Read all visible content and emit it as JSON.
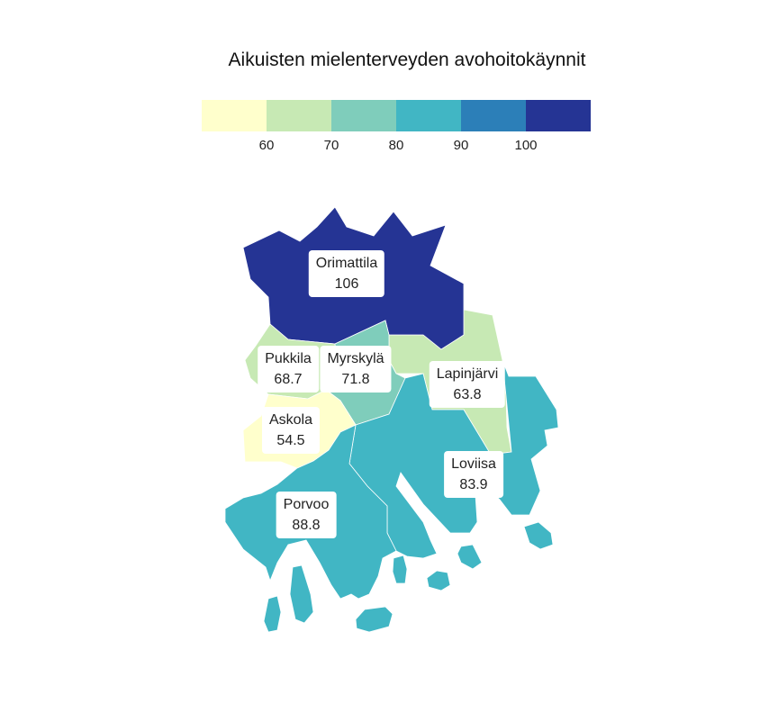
{
  "title": "Aikuisten mielenterveyden avohoitokäynnit",
  "legend": {
    "colors": [
      "#ffffcc",
      "#c7e9b4",
      "#7fcdbb",
      "#41b6c4",
      "#2c7fb8",
      "#253494"
    ],
    "ticks": [
      "60",
      "70",
      "80",
      "90",
      "100"
    ]
  },
  "regions": [
    {
      "name": "Orimattila",
      "value": "106",
      "color": "#253494"
    },
    {
      "name": "Pukkila",
      "value": "68.7",
      "color": "#c7e9b4"
    },
    {
      "name": "Myrskylä",
      "value": "71.8",
      "color": "#7fcdbb"
    },
    {
      "name": "Lapinjärvi",
      "value": "63.8",
      "color": "#c7e9b4"
    },
    {
      "name": "Askola",
      "value": "54.5",
      "color": "#ffffcc"
    },
    {
      "name": "Loviisa",
      "value": "83.9",
      "color": "#41b6c4"
    },
    {
      "name": "Porvoo",
      "value": "88.8",
      "color": "#41b6c4"
    }
  ]
}
